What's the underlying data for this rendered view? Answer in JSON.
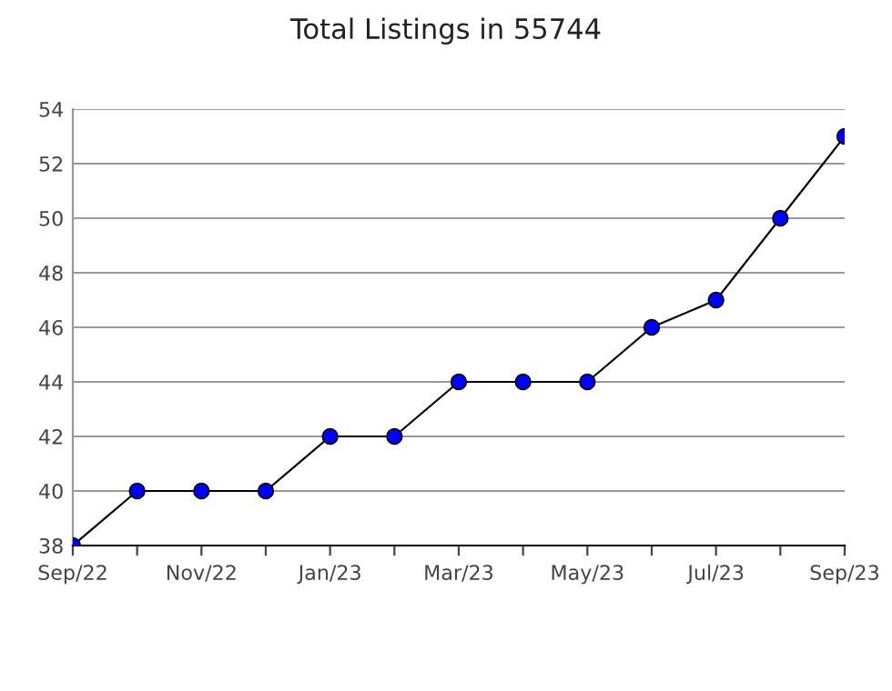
{
  "chart_data": {
    "type": "line",
    "title": "Total Listings in 55744",
    "categories": [
      "Sep/22",
      null,
      "Nov/22",
      null,
      "Jan/23",
      null,
      "Mar/23",
      null,
      "May/23",
      null,
      "Jul/23",
      null,
      "Sep/23"
    ],
    "series": [
      {
        "color": "#0000ff",
        "values": [
          38,
          40,
          40,
          40,
          42,
          42,
          44,
          44,
          44,
          46,
          47,
          50,
          53
        ]
      }
    ],
    "ylim": [
      38,
      54
    ],
    "yticks": [
      38,
      40,
      42,
      44,
      46,
      48,
      50,
      52,
      54
    ],
    "grid": "y",
    "marker": "circle",
    "line_style": "solid",
    "legend": false
  }
}
